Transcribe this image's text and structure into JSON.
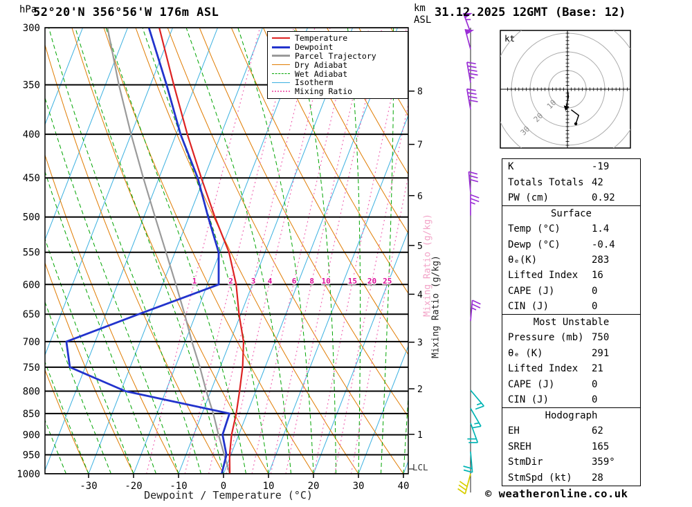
{
  "header": {
    "pressure_unit": "hPa",
    "station_title": "52°20'N 356°56'W 176m ASL",
    "datetime_title": "31.12.2025 12GMT (Base: 12)",
    "km_label": "km",
    "asl_label": "ASL"
  },
  "axes": {
    "pressure_ticks": [
      300,
      350,
      400,
      450,
      500,
      550,
      600,
      650,
      700,
      750,
      800,
      850,
      900,
      950,
      1000
    ],
    "temp_ticks": [
      -30,
      -20,
      -10,
      0,
      10,
      20,
      30,
      40
    ],
    "km_ticks": [
      {
        "km": 1,
        "p": 899
      },
      {
        "km": 2,
        "p": 795
      },
      {
        "km": 3,
        "p": 701
      },
      {
        "km": 4,
        "p": 616
      },
      {
        "km": 5,
        "p": 540
      },
      {
        "km": 6,
        "p": 472
      },
      {
        "km": 7,
        "p": 411
      },
      {
        "km": 8,
        "p": 356
      }
    ],
    "xlabel": "Dewpoint / Temperature (°C)",
    "mixing_ratio_label": "Mixing Ratio (g/kg)",
    "lcl_label": "LCL",
    "lcl_pressure": 987
  },
  "legend": [
    {
      "label": "Temperature",
      "color": "#dd2222",
      "style": "solid",
      "width": 2
    },
    {
      "label": "Dewpoint",
      "color": "#2233cc",
      "style": "solid",
      "width": 3
    },
    {
      "label": "Parcel Trajectory",
      "color": "#9a9a9a",
      "style": "solid",
      "width": 3
    },
    {
      "label": "Dry Adiabat",
      "color": "#e07b00",
      "style": "solid",
      "width": 1
    },
    {
      "label": "Wet Adiabat",
      "color": "#00a400",
      "style": "dashed",
      "width": 1
    },
    {
      "label": "Isotherm",
      "color": "#3ab0e0",
      "style": "solid",
      "width": 1
    },
    {
      "label": "Mixing Ratio",
      "color": "#f06bb4",
      "style": "dotted",
      "width": 2
    }
  ],
  "colors": {
    "temperature": "#dd2222",
    "dewpoint": "#2233cc",
    "parcel": "#9a9a9a",
    "dry_adiabat": "#e07b00",
    "wet_adiabat": "#00a400",
    "isotherm": "#3ab0e0",
    "mixing_ratio": "#f06bb4",
    "mixing_ratio_label": "#dd0f9a",
    "grid": "#000000"
  },
  "chart_data": {
    "type": "skewt-log-p",
    "pressure_range": [
      300,
      1000
    ],
    "skew": 0.39,
    "isotherm_step": 10,
    "isotherm_range": [
      -120,
      40
    ],
    "dry_adiabat_thetas_c": [
      -40,
      -30,
      -20,
      -10,
      0,
      10,
      20,
      30,
      40,
      50,
      60,
      70,
      80,
      90,
      100,
      110,
      120
    ],
    "wet_adiabat_surface_temps_c": [
      -40,
      -35,
      -30,
      -25,
      -20,
      -15,
      -10,
      -5,
      0,
      5,
      10,
      15,
      20,
      25,
      30,
      35,
      40
    ],
    "mixing_ratio_lines_gkg": [
      1,
      2,
      3,
      4,
      6,
      8,
      10,
      15,
      20,
      25
    ],
    "mixing_ratio_label_pressure": 595,
    "temperature_profile": [
      [
        1000,
        1.4
      ],
      [
        950,
        -0.3
      ],
      [
        900,
        -1.6
      ],
      [
        850,
        -2.4
      ],
      [
        800,
        -3.6
      ],
      [
        750,
        -5.0
      ],
      [
        700,
        -7.0
      ],
      [
        650,
        -10.4
      ],
      [
        600,
        -13.6
      ],
      [
        550,
        -18.0
      ],
      [
        500,
        -24.2
      ],
      [
        450,
        -30.6
      ],
      [
        400,
        -37.5
      ],
      [
        350,
        -44.8
      ],
      [
        300,
        -53.0
      ]
    ],
    "dewpoint_profile": [
      [
        1000,
        -0.4
      ],
      [
        950,
        -1.0
      ],
      [
        900,
        -3.6
      ],
      [
        850,
        -3.9
      ],
      [
        800,
        -29.0
      ],
      [
        750,
        -43.4
      ],
      [
        700,
        -46.4
      ],
      [
        650,
        -32.7
      ],
      [
        600,
        -17.5
      ],
      [
        550,
        -20.3
      ],
      [
        500,
        -25.7
      ],
      [
        450,
        -31.4
      ],
      [
        400,
        -39.0
      ],
      [
        350,
        -46.4
      ],
      [
        300,
        -55.3
      ]
    ],
    "parcel_profile": [
      [
        1000,
        1.4
      ],
      [
        950,
        -1.5
      ],
      [
        900,
        -4.5
      ],
      [
        850,
        -7.5
      ],
      [
        800,
        -11.0
      ],
      [
        750,
        -14.5
      ],
      [
        700,
        -18.5
      ],
      [
        650,
        -22.5
      ],
      [
        600,
        -27.0
      ],
      [
        550,
        -32.0
      ],
      [
        500,
        -37.5
      ],
      [
        450,
        -43.5
      ],
      [
        400,
        -50.0
      ],
      [
        350,
        -57.0
      ],
      [
        300,
        -64.5
      ]
    ],
    "wind_barbs": [
      {
        "p": 304,
        "dir": 340,
        "spd": 55,
        "color": "#9b2fd6"
      },
      {
        "p": 318,
        "dir": 345,
        "spd": 50,
        "color": "#9b2fd6"
      },
      {
        "p": 348,
        "dir": 350,
        "spd": 45,
        "color": "#9b2fd6"
      },
      {
        "p": 374,
        "dir": 350,
        "spd": 40,
        "color": "#9b2fd6"
      },
      {
        "p": 468,
        "dir": 355,
        "spd": 30,
        "color": "#9b2fd6"
      },
      {
        "p": 498,
        "dir": 0,
        "spd": 25,
        "color": "#9b2fd6"
      },
      {
        "p": 662,
        "dir": 5,
        "spd": 25,
        "color": "#9b2fd6"
      },
      {
        "p": 798,
        "dir": 140,
        "spd": 15,
        "color": "#00b4b4"
      },
      {
        "p": 838,
        "dir": 150,
        "spd": 15,
        "color": "#00b4b4"
      },
      {
        "p": 872,
        "dir": 160,
        "spd": 20,
        "color": "#00b4b4"
      },
      {
        "p": 942,
        "dir": 175,
        "spd": 20,
        "color": "#00b4b4"
      },
      {
        "p": 1000,
        "dir": 195,
        "spd": 30,
        "color": "#d8ce00"
      }
    ]
  },
  "hodograph": {
    "unit_label": "kt",
    "rings_kt": [
      10,
      20,
      30,
      40
    ],
    "ring_labels": [
      "10",
      "20",
      "30"
    ],
    "trace": [
      {
        "pts": [
          [
            0,
            0
          ],
          [
            0.5,
            -4
          ],
          [
            -0.5,
            -9
          ]
        ],
        "arrow": true
      },
      {
        "pts": [
          [
            2,
            -11
          ],
          [
            6,
            -14
          ],
          [
            4.5,
            -18.5
          ]
        ],
        "dot": true
      }
    ]
  },
  "stats": {
    "sections": [
      {
        "title": null,
        "rows": [
          [
            "K",
            "-19"
          ],
          [
            "Totals Totals",
            "42"
          ],
          [
            "PW (cm)",
            "0.92"
          ]
        ]
      },
      {
        "title": "Surface",
        "rows": [
          [
            "Temp (°C)",
            "1.4"
          ],
          [
            "Dewp (°C)",
            "-0.4"
          ],
          [
            "θₑ(K)",
            "283"
          ],
          [
            "Lifted Index",
            "16"
          ],
          [
            "CAPE (J)",
            "0"
          ],
          [
            "CIN (J)",
            "0"
          ]
        ]
      },
      {
        "title": "Most Unstable",
        "rows": [
          [
            "Pressure (mb)",
            "750"
          ],
          [
            "θₑ (K)",
            "291"
          ],
          [
            "Lifted Index",
            "21"
          ],
          [
            "CAPE (J)",
            "0"
          ],
          [
            "CIN (J)",
            "0"
          ]
        ]
      },
      {
        "title": "Hodograph",
        "rows": [
          [
            "EH",
            "62"
          ],
          [
            "SREH",
            "165"
          ],
          [
            "StmDir",
            "359°"
          ],
          [
            "StmSpd (kt)",
            "28"
          ]
        ]
      }
    ]
  },
  "footer": {
    "copyright": "© weatheronline.co.uk"
  }
}
